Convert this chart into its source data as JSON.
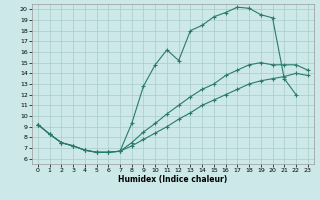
{
  "xlabel": "Humidex (Indice chaleur)",
  "background_color": "#cce8e8",
  "grid_color": "#aacccc",
  "line_color": "#2a7a6a",
  "xlim": [
    -0.5,
    23.5
  ],
  "ylim": [
    5.5,
    20.5
  ],
  "xticks": [
    0,
    1,
    2,
    3,
    4,
    5,
    6,
    7,
    8,
    9,
    10,
    11,
    12,
    13,
    14,
    15,
    16,
    17,
    18,
    19,
    20,
    21,
    22,
    23
  ],
  "yticks": [
    6,
    7,
    8,
    9,
    10,
    11,
    12,
    13,
    14,
    15,
    16,
    17,
    18,
    19,
    20
  ],
  "curve1_x": [
    0,
    1,
    2,
    3,
    4,
    5,
    6,
    7,
    8,
    9,
    10,
    11,
    12,
    13,
    14,
    15,
    16,
    17,
    18,
    19,
    20,
    21,
    22
  ],
  "curve1_y": [
    9.2,
    8.3,
    7.5,
    7.2,
    6.8,
    6.6,
    6.6,
    6.7,
    9.3,
    12.8,
    14.8,
    16.2,
    15.2,
    18.0,
    18.5,
    19.3,
    19.7,
    20.2,
    20.1,
    19.5,
    19.2,
    13.5,
    12.0
  ],
  "curve2_x": [
    0,
    1,
    2,
    3,
    4,
    5,
    6,
    7,
    8,
    9,
    10,
    11,
    12,
    13,
    14,
    15,
    16,
    17,
    18,
    19,
    20,
    21,
    22,
    23
  ],
  "curve2_y": [
    9.2,
    8.3,
    7.5,
    7.2,
    6.8,
    6.6,
    6.6,
    6.7,
    7.5,
    8.5,
    9.3,
    10.2,
    11.0,
    11.8,
    12.5,
    13.0,
    13.8,
    14.3,
    14.8,
    15.0,
    14.8,
    14.8,
    14.8,
    14.3
  ],
  "curve3_x": [
    0,
    1,
    2,
    3,
    4,
    5,
    6,
    7,
    8,
    9,
    10,
    11,
    12,
    13,
    14,
    15,
    16,
    17,
    18,
    19,
    20,
    21,
    22,
    23
  ],
  "curve3_y": [
    9.2,
    8.3,
    7.5,
    7.2,
    6.8,
    6.6,
    6.6,
    6.7,
    7.2,
    7.8,
    8.4,
    9.0,
    9.7,
    10.3,
    11.0,
    11.5,
    12.0,
    12.5,
    13.0,
    13.3,
    13.5,
    13.7,
    14.0,
    13.8
  ]
}
